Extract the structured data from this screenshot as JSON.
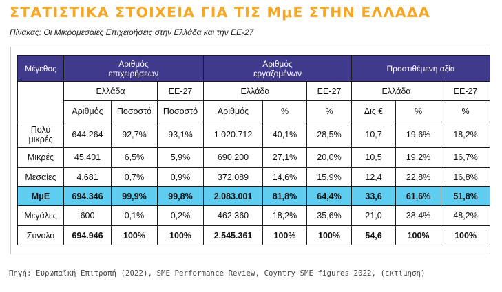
{
  "title": "ΣΤΑΤΙΣΤΙΚΑ ΣΤΟΙΧΕΙΑ ΓΙΑ ΤΙΣ ΜμΕ ΣΤΗΝ ΕΛΛΑΔΑ",
  "subtitle": "Πίνακας: Οι Μικρομεσαίες Επιχειρήσεις στην Ελλάδα και την ΕΕ-27",
  "table": {
    "corner": "Μέγεθος",
    "groups": [
      "Αριθμός επιχειρήσεων",
      "Αριθμός εργαζομένων",
      "Προστιθέμενη αξία"
    ],
    "regions": [
      "Ελλάδα",
      "ΕΕ-27",
      "Ελλάδα",
      "ΕΕ-27",
      "Ελλάδα",
      "ΕΕ-27"
    ],
    "metrics": [
      "Αριθμός",
      "Ποσοστό",
      "Ποσοστό",
      "Αριθμός",
      "%",
      "%",
      "Δις €",
      "%",
      "%"
    ],
    "rows": [
      {
        "label": "Πολύ μικρές",
        "values": [
          "644.264",
          "92,7%",
          "93,1%",
          "1.020.712",
          "40,1%",
          "28,5%",
          "10,7",
          "19,6%",
          "18,2%"
        ]
      },
      {
        "label": "Μικρές",
        "values": [
          "45.401",
          "6,5%",
          "5,9%",
          "690.200",
          "27,1%",
          "20,0%",
          "10,5",
          "19,2%",
          "16,7%"
        ]
      },
      {
        "label": "Μεσαίες",
        "values": [
          "4.681",
          "0,7%",
          "0,9%",
          "372.089",
          "14,6%",
          "15,9%",
          "12,4",
          "22,8%",
          "16,8%"
        ]
      },
      {
        "label": "ΜμΕ",
        "values": [
          "694.346",
          "99,9%",
          "99,8%",
          "2.083.001",
          "81,8%",
          "64,4%",
          "33,6",
          "61,6%",
          "51,8%"
        ]
      },
      {
        "label": "Μεγάλες",
        "values": [
          "600",
          "0,1%",
          "0,2%",
          "462.360",
          "18,2%",
          "35,6%",
          "21,0",
          "38,4%",
          "48,2%"
        ]
      },
      {
        "label": "Σύνολο",
        "values": [
          "694.946",
          "100%",
          "100%",
          "2.545.361",
          "100%",
          "100%",
          "54,6",
          "100%",
          "100%"
        ]
      }
    ]
  },
  "source": "Πηγή: Ευρωπαϊκή Επιτροπή (2022), SME Performance Review, Coyntry SME figures 2022, (εκτίμηση)",
  "colors": {
    "title": "#f5a623",
    "header": "#3f3a8c",
    "highlight_row": "#5ecdf0"
  }
}
